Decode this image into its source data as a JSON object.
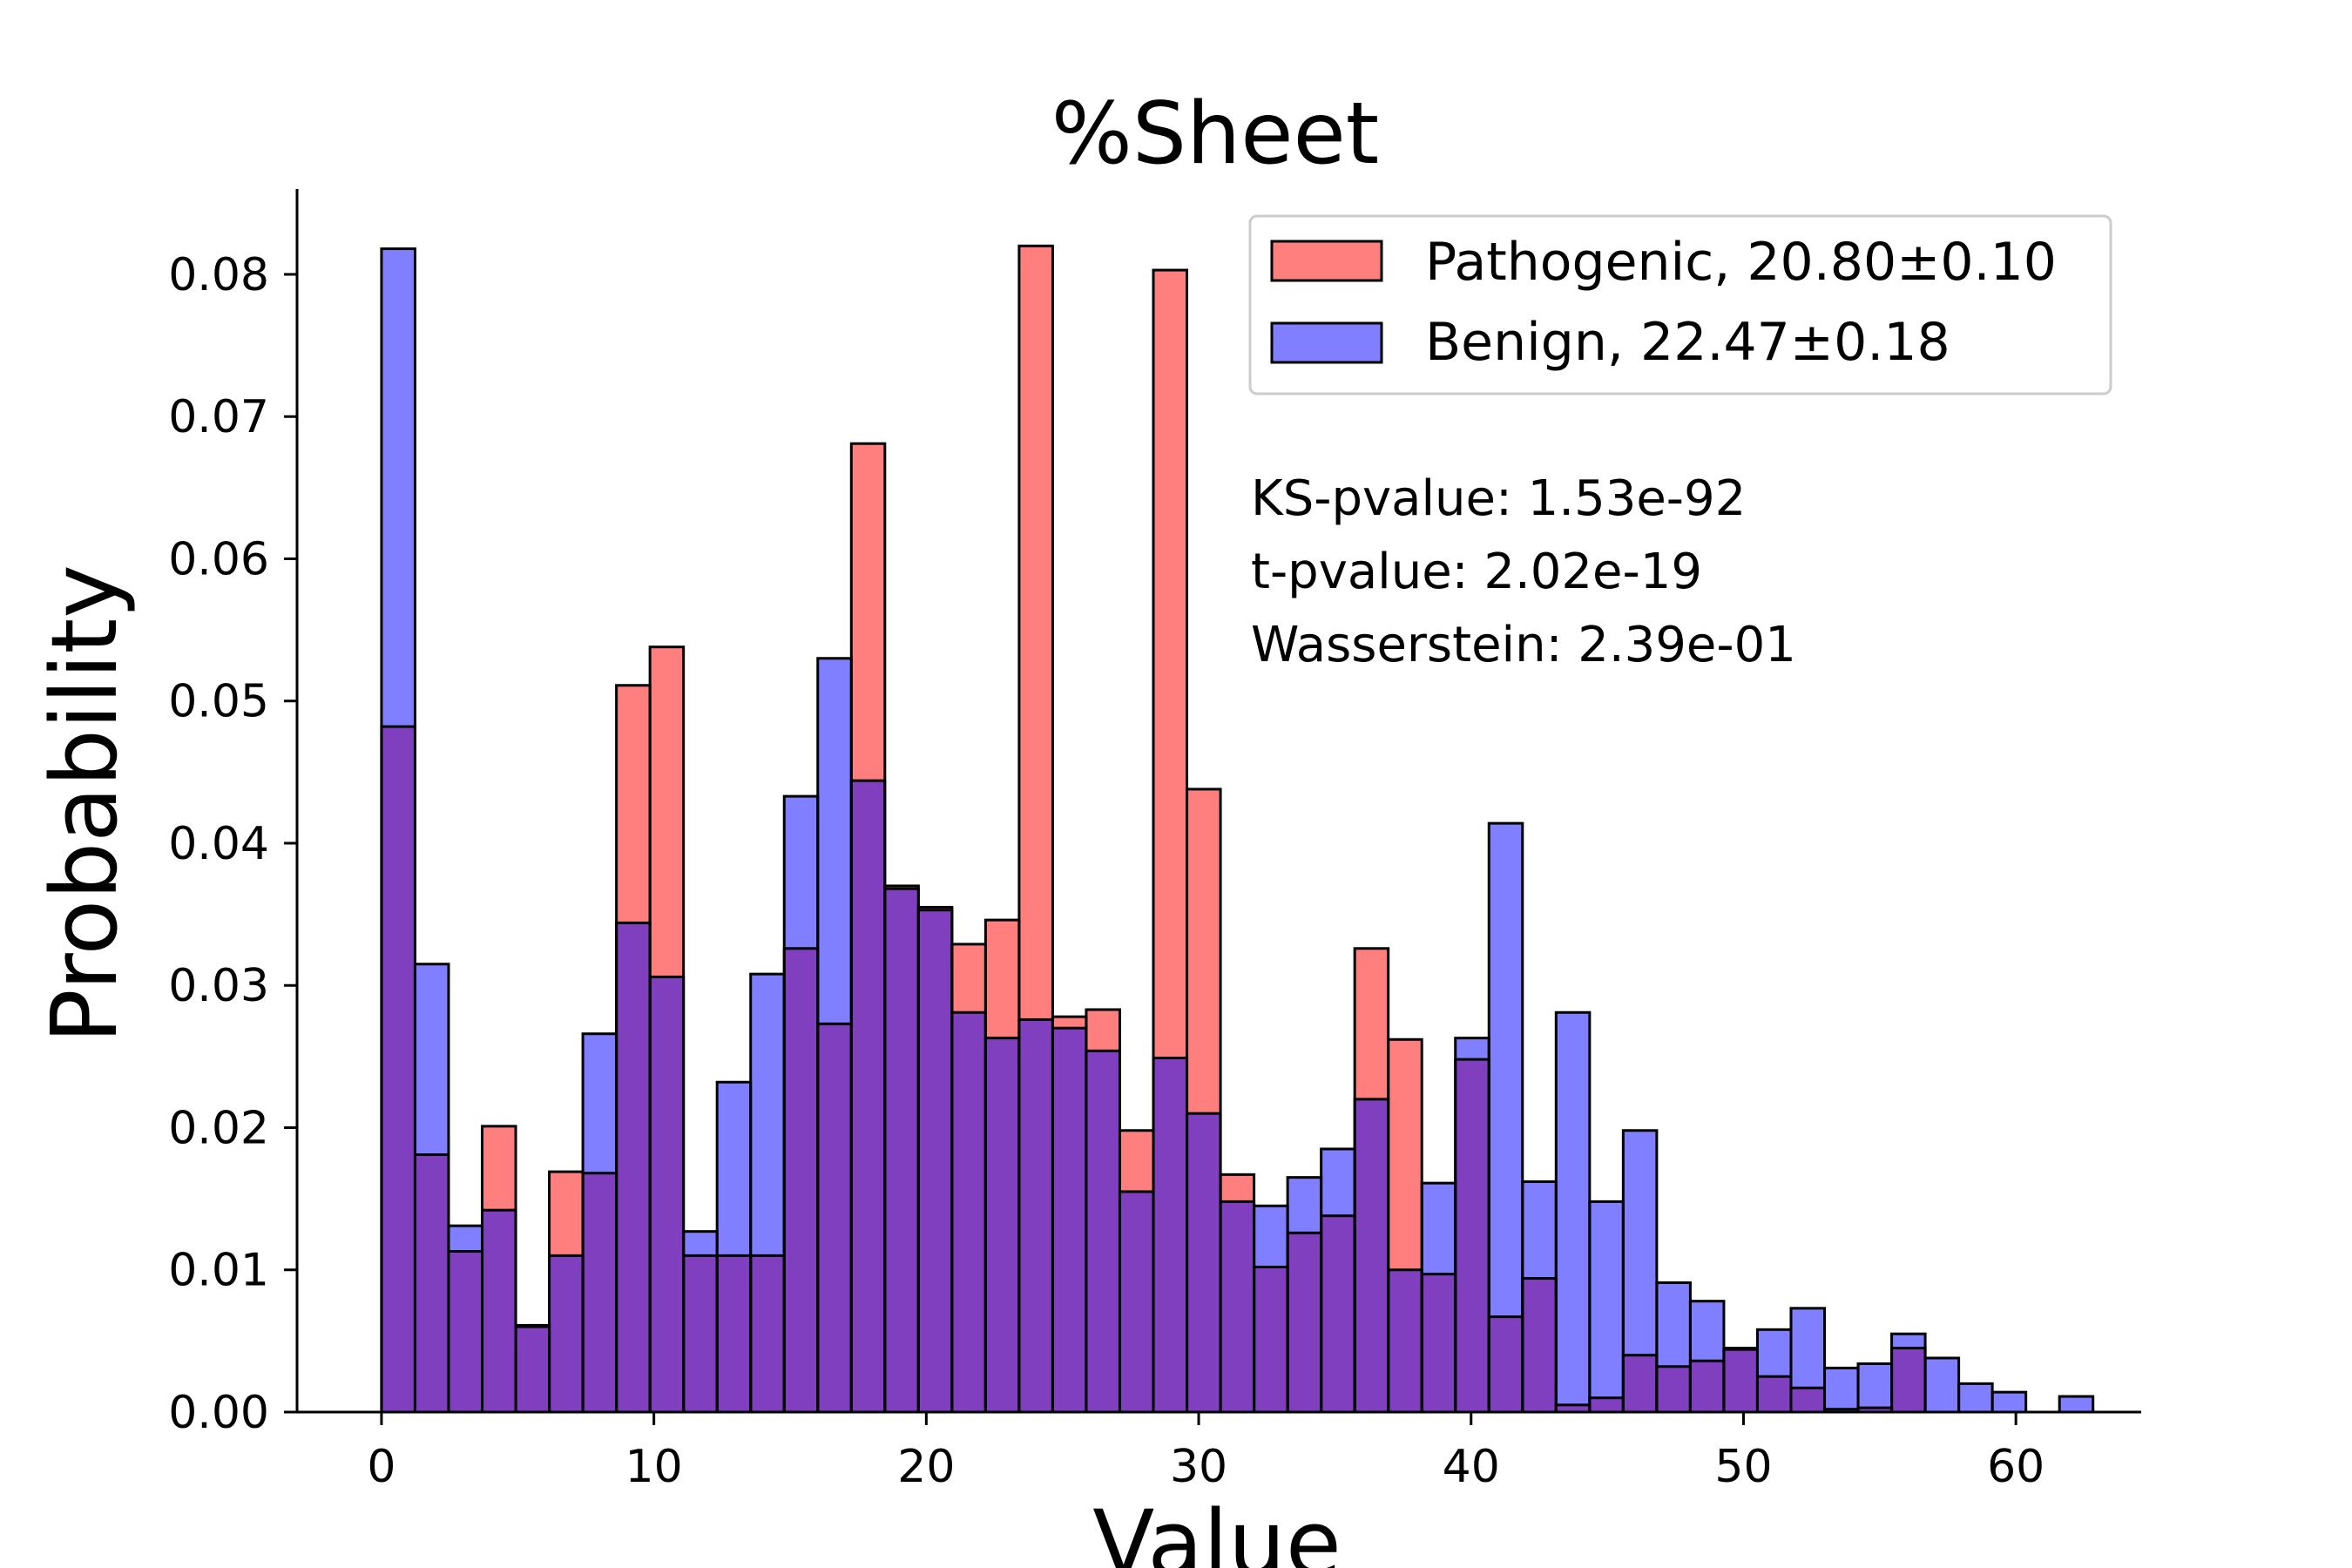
{
  "chart_data": {
    "type": "bar",
    "title": "%Sheet",
    "xlabel": "Value",
    "ylabel": "Probability",
    "xlim": [
      -3.1,
      64.6
    ],
    "ylim": [
      0,
      0.086
    ],
    "xticks": [
      0,
      10,
      20,
      30,
      40,
      50,
      60
    ],
    "yticks": [
      0.0,
      0.01,
      0.02,
      0.03,
      0.04,
      0.05,
      0.06,
      0.07,
      0.08
    ],
    "ytick_decimals": 2,
    "grid": false,
    "legend_position": "top-right",
    "bin_width": 1.232,
    "bin_start": 0,
    "series": [
      {
        "name": "Pathogenic, 20.80±0.10",
        "color": "#ff7f7f",
        "values": [
          0.0482,
          0.0181,
          0.0113,
          0.0201,
          0.0061,
          0.0169,
          0.0168,
          0.0511,
          0.0538,
          0.011,
          0.011,
          0.011,
          0.0326,
          0.0273,
          0.0681,
          0.037,
          0.0355,
          0.0329,
          0.0346,
          0.082,
          0.0278,
          0.0283,
          0.0198,
          0.0803,
          0.0438,
          0.0167,
          0.0102,
          0.0126,
          0.0138,
          0.0326,
          0.0262,
          0.0097,
          0.0248,
          0.0067,
          0.0094,
          0.0005,
          0.001,
          0.004,
          0.0032,
          0.0036,
          0.0045,
          0.0025,
          0.0017,
          0.0002,
          0.0003,
          0.0045,
          0.0,
          0.0,
          0.0,
          0.0,
          0.0
        ]
      },
      {
        "name": "Benign, 22.47±0.18",
        "color": "#7f7fff",
        "values": [
          0.0818,
          0.0315,
          0.0131,
          0.0142,
          0.006,
          0.011,
          0.0266,
          0.0344,
          0.0306,
          0.0127,
          0.0232,
          0.0308,
          0.0433,
          0.053,
          0.0444,
          0.0368,
          0.0353,
          0.0281,
          0.0263,
          0.0276,
          0.027,
          0.0254,
          0.0155,
          0.0249,
          0.021,
          0.0148,
          0.0145,
          0.0165,
          0.0185,
          0.022,
          0.01,
          0.0161,
          0.0263,
          0.0414,
          0.0162,
          0.0281,
          0.0148,
          0.0198,
          0.0091,
          0.0078,
          0.0044,
          0.0058,
          0.0073,
          0.0031,
          0.0034,
          0.0055,
          0.0038,
          0.002,
          0.0014,
          0.0,
          0.0011
        ]
      }
    ],
    "annotations": [
      "KS-pvalue: 1.53e-92",
      "t-pvalue: 2.02e-19",
      "Wasserstein: 2.39e-01"
    ]
  }
}
